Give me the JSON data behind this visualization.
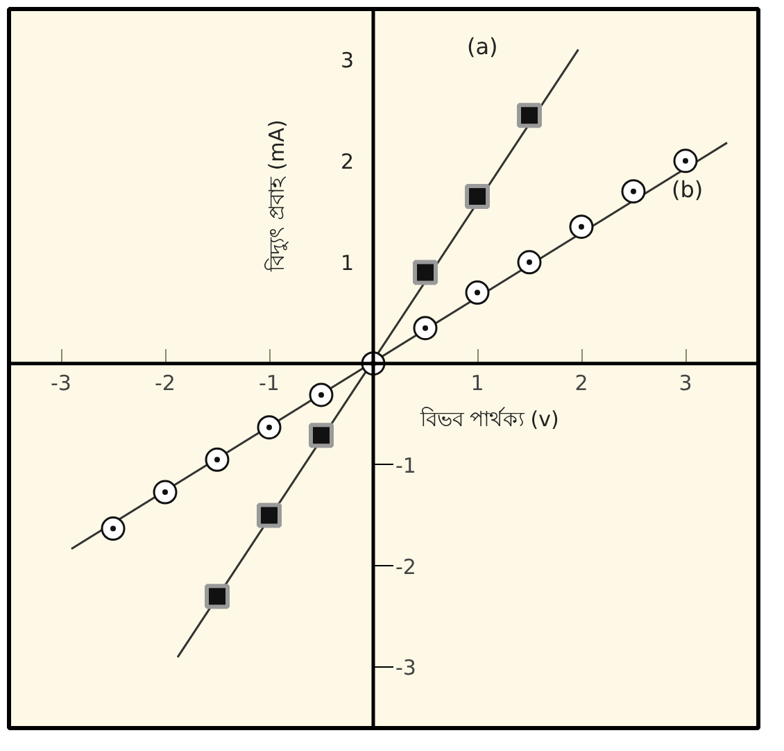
{
  "chart_data": {
    "type": "scatter",
    "xlabel": "বিভব পার্থক্য (v)",
    "ylabel": "বিদ্যুৎ প্রবাহ (mA)",
    "xlim": [
      -3.5,
      3.7
    ],
    "ylim": [
      -3.6,
      3.5
    ],
    "xticks": [
      -3,
      -2,
      -1,
      1,
      2,
      3
    ],
    "yticks": [
      1,
      2,
      3
    ],
    "y2lim": [
      -3.6,
      3.5
    ],
    "y2ticks": [
      -3,
      -2,
      -1
    ],
    "grid": false,
    "series": [
      {
        "type": "line",
        "color": "#333333",
        "marker": "none",
        "x": [
          -1.88,
          1.97
        ],
        "values": [
          -2.9,
          3.1
        ]
      },
      {
        "type": "line",
        "color": "#333333",
        "marker": "none",
        "x": [
          -2.9,
          3.4
        ],
        "values": [
          -1.83,
          2.18
        ]
      },
      {
        "name": "(a)",
        "color": "#111111",
        "marker": "square",
        "x": [
          -1.5,
          -1,
          -0.5,
          0.5,
          1,
          1.5
        ],
        "values": [
          -2.3,
          -1.5,
          -0.71,
          0.9,
          1.65,
          2.45
        ]
      },
      {
        "name": "(b)",
        "color": "#111111",
        "marker": "circle",
        "x": [
          -2.5,
          -2,
          -1.5,
          -1,
          -0.5,
          0,
          0.5,
          1,
          1.5,
          2,
          2.5,
          3
        ],
        "values": [
          -1.63,
          -1.27,
          -0.95,
          -0.63,
          -0.31,
          0,
          0.35,
          0.7,
          1.0,
          1.35,
          1.7,
          2.0
        ]
      }
    ]
  }
}
